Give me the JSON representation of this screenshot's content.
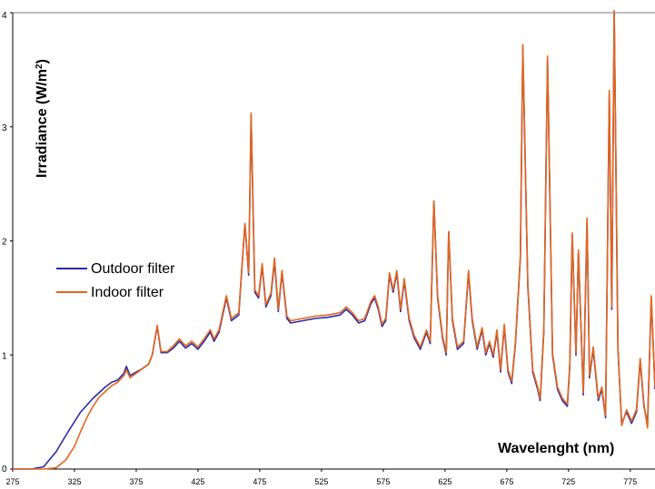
{
  "chart_data": {
    "type": "line",
    "xlabel": "Wavelenght (nm)",
    "ylabel": "Irradiance (W/m",
    "ylabel_sup": "2",
    "ylabel_close": ")",
    "xlim": [
      275,
      795
    ],
    "ylim": [
      0,
      4
    ],
    "x_ticks": [
      "275",
      "325",
      "375",
      "425",
      "475",
      "525",
      "575",
      "625",
      "675",
      "725",
      "775"
    ],
    "y_ticks": [
      "0",
      "1",
      "2",
      "3",
      "4"
    ],
    "legend_position": "left",
    "series": [
      {
        "name": "Outdoor filter",
        "color": "#2a2aa8",
        "x": [
          275,
          290,
          300,
          310,
          320,
          330,
          340,
          350,
          355,
          360,
          365,
          367,
          370,
          375,
          380,
          385,
          388,
          392,
          395,
          400,
          405,
          410,
          415,
          420,
          425,
          430,
          435,
          438,
          442,
          448,
          452,
          458,
          463,
          466,
          468,
          471,
          474,
          477,
          480,
          484,
          487,
          490,
          493,
          497,
          500,
          510,
          520,
          530,
          540,
          545,
          550,
          555,
          560,
          565,
          568,
          571,
          574,
          577,
          580,
          583,
          586,
          589,
          592,
          596,
          600,
          605,
          610,
          613,
          616,
          619,
          623,
          626,
          628,
          631,
          635,
          640,
          644,
          647,
          651,
          655,
          658,
          661,
          664,
          667,
          670,
          673,
          676,
          679,
          682,
          686,
          688,
          692,
          696,
          700,
          702,
          705,
          708,
          712,
          716,
          720,
          724,
          726,
          728,
          731,
          733,
          737,
          740,
          742,
          745,
          749,
          752,
          755,
          758,
          760,
          762,
          765,
          768,
          772,
          776,
          780,
          783,
          786,
          789,
          792,
          795
        ],
        "values": [
          0,
          0,
          0.02,
          0.15,
          0.33,
          0.5,
          0.62,
          0.72,
          0.76,
          0.78,
          0.84,
          0.9,
          0.82,
          0.85,
          0.88,
          0.92,
          1.0,
          1.25,
          1.02,
          1.02,
          1.06,
          1.12,
          1.06,
          1.1,
          1.05,
          1.12,
          1.2,
          1.12,
          1.2,
          1.5,
          1.3,
          1.35,
          2.15,
          1.7,
          3.1,
          1.55,
          1.5,
          1.78,
          1.42,
          1.52,
          1.82,
          1.38,
          1.72,
          1.32,
          1.28,
          1.3,
          1.32,
          1.33,
          1.35,
          1.4,
          1.35,
          1.28,
          1.3,
          1.45,
          1.5,
          1.4,
          1.25,
          1.3,
          1.7,
          1.55,
          1.72,
          1.38,
          1.65,
          1.3,
          1.15,
          1.05,
          1.2,
          1.1,
          2.35,
          1.5,
          1.15,
          1.0,
          2.08,
          1.3,
          1.05,
          1.1,
          1.72,
          1.3,
          1.05,
          1.22,
          1.0,
          1.1,
          0.98,
          1.2,
          0.85,
          1.25,
          0.85,
          0.75,
          1.1,
          1.85,
          3.7,
          1.6,
          0.85,
          0.7,
          0.6,
          1.2,
          3.6,
          1.0,
          0.7,
          0.6,
          0.55,
          0.9,
          2.05,
          1.0,
          1.9,
          0.65,
          2.18,
          0.8,
          1.05,
          0.6,
          0.7,
          0.45,
          3.3,
          1.4,
          4.0,
          1.05,
          0.4,
          0.5,
          0.4,
          0.5,
          0.95,
          0.55,
          0.4,
          1.5,
          0.7
        ]
      },
      {
        "name": "Indoor filter",
        "color": "#e3661c",
        "x": [
          275,
          300,
          310,
          318,
          325,
          330,
          335,
          340,
          345,
          350,
          355,
          360,
          365,
          367,
          370,
          375,
          380,
          385,
          388,
          392,
          395,
          400,
          405,
          410,
          415,
          420,
          425,
          430,
          435,
          438,
          442,
          448,
          452,
          458,
          463,
          466,
          468,
          471,
          474,
          477,
          480,
          484,
          487,
          490,
          493,
          497,
          500,
          510,
          520,
          530,
          540,
          545,
          550,
          555,
          560,
          565,
          568,
          571,
          574,
          577,
          580,
          583,
          586,
          589,
          592,
          596,
          600,
          605,
          610,
          613,
          616,
          619,
          623,
          626,
          628,
          631,
          635,
          640,
          644,
          647,
          651,
          655,
          658,
          661,
          664,
          667,
          670,
          673,
          676,
          679,
          682,
          686,
          688,
          692,
          696,
          700,
          702,
          705,
          708,
          712,
          716,
          720,
          724,
          726,
          728,
          731,
          733,
          737,
          740,
          742,
          745,
          749,
          752,
          755,
          758,
          760,
          762,
          765,
          768,
          772,
          776,
          780,
          783,
          786,
          789,
          792,
          795
        ],
        "values": [
          0,
          0,
          0.01,
          0.08,
          0.2,
          0.33,
          0.45,
          0.55,
          0.63,
          0.68,
          0.73,
          0.76,
          0.82,
          0.87,
          0.8,
          0.84,
          0.88,
          0.92,
          1.0,
          1.26,
          1.03,
          1.03,
          1.08,
          1.14,
          1.08,
          1.12,
          1.07,
          1.14,
          1.22,
          1.14,
          1.22,
          1.52,
          1.32,
          1.37,
          2.15,
          1.72,
          3.12,
          1.57,
          1.52,
          1.8,
          1.44,
          1.54,
          1.85,
          1.4,
          1.74,
          1.34,
          1.3,
          1.32,
          1.34,
          1.35,
          1.37,
          1.42,
          1.37,
          1.3,
          1.32,
          1.47,
          1.52,
          1.42,
          1.27,
          1.32,
          1.72,
          1.57,
          1.74,
          1.4,
          1.67,
          1.32,
          1.17,
          1.07,
          1.22,
          1.12,
          2.35,
          1.52,
          1.17,
          1.02,
          2.08,
          1.32,
          1.07,
          1.12,
          1.74,
          1.32,
          1.07,
          1.24,
          1.02,
          1.12,
          1.0,
          1.22,
          0.87,
          1.27,
          0.87,
          0.77,
          1.12,
          1.87,
          3.72,
          1.62,
          0.87,
          0.72,
          0.62,
          1.22,
          3.62,
          1.02,
          0.72,
          0.62,
          0.57,
          0.92,
          2.07,
          1.02,
          1.92,
          0.67,
          2.2,
          0.82,
          1.07,
          0.62,
          0.72,
          0.47,
          3.32,
          1.42,
          4.02,
          1.07,
          0.38,
          0.52,
          0.42,
          0.52,
          0.97,
          0.57,
          0.36,
          1.52,
          0.72
        ]
      }
    ]
  }
}
